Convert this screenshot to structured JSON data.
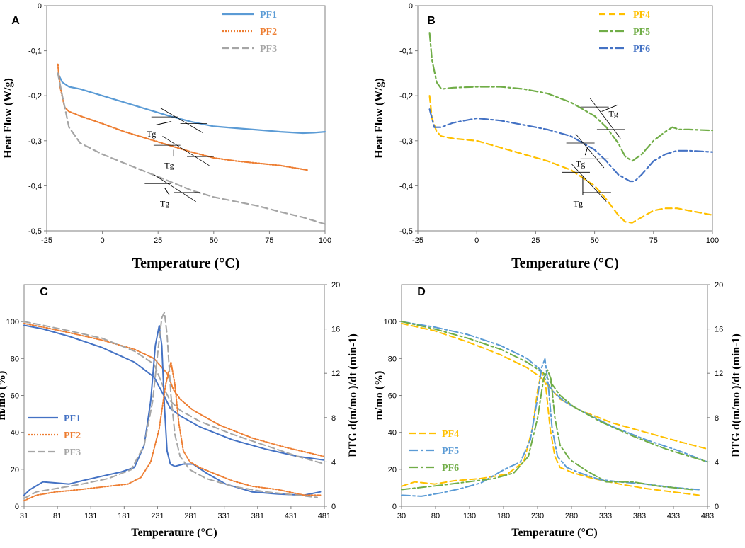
{
  "colors": {
    "blue": "#5b9bd5",
    "orange": "#ed7d31",
    "gray": "#a5a5a5",
    "yellow": "#ffc000",
    "green": "#70ad47",
    "darkblue": "#4472c4",
    "black": "#000000"
  },
  "chart_data": [
    {
      "panel": "A",
      "type": "line",
      "xlabel": "Temperature (°C)",
      "ylabel": "Heat Flow (W/g)",
      "xlim": [
        -25,
        100
      ],
      "ylim": [
        -0.5,
        0
      ],
      "xticks": [
        "-25",
        "0",
        "25",
        "50",
        "75",
        "100"
      ],
      "yticks": [
        "0",
        "-0,1",
        "-0,2",
        "-0,3",
        "-0,4",
        "-0,5"
      ],
      "annotation": "Tg",
      "series": [
        {
          "name": "PF1",
          "color": "#5b9bd5",
          "dash": "",
          "x": [
            -20,
            -18,
            -15,
            -10,
            0,
            10,
            20,
            30,
            40,
            50,
            60,
            70,
            80,
            90,
            95,
            100
          ],
          "y": [
            -0.15,
            -0.17,
            -0.18,
            -0.185,
            -0.2,
            -0.215,
            -0.23,
            -0.245,
            -0.258,
            -0.268,
            -0.272,
            -0.276,
            -0.28,
            -0.283,
            -0.282,
            -0.28
          ]
        },
        {
          "name": "PF2",
          "color": "#ed7d31",
          "dash": "2,2",
          "x": [
            -20,
            -19,
            -17,
            -15,
            -10,
            0,
            10,
            20,
            30,
            40,
            50,
            60,
            70,
            80,
            92
          ],
          "y": [
            -0.13,
            -0.18,
            -0.225,
            -0.235,
            -0.245,
            -0.262,
            -0.28,
            -0.295,
            -0.31,
            -0.325,
            -0.338,
            -0.345,
            -0.35,
            -0.355,
            -0.365
          ]
        },
        {
          "name": "PF3",
          "color": "#a5a5a5",
          "dash": "9,5",
          "x": [
            -20,
            -18,
            -15,
            -10,
            0,
            10,
            20,
            30,
            40,
            50,
            60,
            70,
            80,
            90,
            100
          ],
          "y": [
            -0.15,
            -0.2,
            -0.27,
            -0.305,
            -0.33,
            -0.35,
            -0.37,
            -0.39,
            -0.41,
            -0.425,
            -0.435,
            -0.445,
            -0.458,
            -0.47,
            -0.485
          ]
        }
      ]
    },
    {
      "panel": "B",
      "type": "line",
      "xlabel": "Temperature (°C)",
      "ylabel": "Heat Flow (W/g)",
      "xlim": [
        -25,
        100
      ],
      "ylim": [
        -0.5,
        0
      ],
      "xticks": [
        "-25",
        "0",
        "25",
        "50",
        "75",
        "100"
      ],
      "yticks": [
        "0",
        "-0,1",
        "-0,2",
        "-0,3",
        "-0,4",
        "-0,5"
      ],
      "annotation": "Tg",
      "series": [
        {
          "name": "PF4",
          "color": "#ffc000",
          "dash": "9,5",
          "x": [
            -20,
            -19,
            -17,
            -15,
            -10,
            0,
            10,
            20,
            30,
            40,
            50,
            55,
            60,
            63,
            66,
            70,
            75,
            80,
            85,
            90,
            100
          ],
          "y": [
            -0.2,
            -0.25,
            -0.28,
            -0.29,
            -0.295,
            -0.3,
            -0.315,
            -0.33,
            -0.345,
            -0.365,
            -0.4,
            -0.43,
            -0.465,
            -0.48,
            -0.482,
            -0.47,
            -0.455,
            -0.45,
            -0.45,
            -0.455,
            -0.465
          ]
        },
        {
          "name": "PF5",
          "color": "#70ad47",
          "dash": "12,4,3,4",
          "x": [
            -20,
            -19,
            -17,
            -15,
            -10,
            0,
            10,
            20,
            30,
            40,
            50,
            55,
            60,
            63,
            66,
            70,
            75,
            80,
            83,
            86,
            90,
            100
          ],
          "y": [
            -0.06,
            -0.12,
            -0.17,
            -0.185,
            -0.182,
            -0.18,
            -0.18,
            -0.185,
            -0.195,
            -0.215,
            -0.245,
            -0.27,
            -0.305,
            -0.335,
            -0.345,
            -0.33,
            -0.3,
            -0.28,
            -0.27,
            -0.275,
            -0.275,
            -0.277
          ]
        },
        {
          "name": "PF6",
          "color": "#4472c4",
          "dash": "12,4,3,4",
          "x": [
            -20,
            -18,
            -15,
            -10,
            0,
            10,
            20,
            30,
            40,
            50,
            55,
            60,
            65,
            67,
            70,
            75,
            80,
            85,
            90,
            100
          ],
          "y": [
            -0.23,
            -0.27,
            -0.27,
            -0.26,
            -0.25,
            -0.255,
            -0.265,
            -0.275,
            -0.29,
            -0.32,
            -0.345,
            -0.375,
            -0.39,
            -0.39,
            -0.375,
            -0.345,
            -0.33,
            -0.322,
            -0.322,
            -0.325
          ]
        }
      ]
    },
    {
      "panel": "C",
      "type": "line",
      "xlabel": "Temperature (°C)",
      "ylabel": "m/mo (%)",
      "y2label": "DTG d(m/mo )/dt (min-1)",
      "xlim": [
        31,
        491
      ],
      "ylim": [
        0,
        120
      ],
      "y2lim": [
        0,
        20
      ],
      "xticks": [
        "31",
        "81",
        "131",
        "181",
        "231",
        "281",
        "331",
        "381",
        "431",
        "481"
      ],
      "yticks": [
        "0",
        "20",
        "40",
        "60",
        "80",
        "100"
      ],
      "y2ticks": [
        "0",
        "4",
        "8",
        "12",
        "16",
        "20"
      ],
      "series": [
        {
          "name": "PF1",
          "kind": "mass",
          "color": "#4472c4",
          "dash": "",
          "x": [
            31,
            60,
            100,
            150,
            200,
            230,
            245,
            255,
            270,
            300,
            350,
            400,
            450,
            490
          ],
          "y": [
            98,
            96,
            92,
            86,
            78,
            70,
            60,
            53,
            49,
            43,
            36,
            31,
            27,
            25
          ]
        },
        {
          "name": "PF2",
          "kind": "mass",
          "color": "#ed7d31",
          "dash": "2,2",
          "x": [
            31,
            60,
            100,
            150,
            200,
            230,
            250,
            260,
            270,
            290,
            330,
            380,
            430,
            490
          ],
          "y": [
            99,
            97,
            94,
            90,
            85,
            80,
            72,
            63,
            58,
            52,
            44,
            37,
            32,
            27
          ]
        },
        {
          "name": "PF3",
          "kind": "mass",
          "color": "#a5a5a5",
          "dash": "9,5",
          "x": [
            31,
            60,
            100,
            150,
            200,
            230,
            245,
            255,
            270,
            300,
            350,
            400,
            450,
            490
          ],
          "y": [
            100,
            98,
            95,
            91,
            84,
            77,
            64,
            57,
            52,
            46,
            39,
            33,
            27,
            23
          ]
        },
        {
          "name": "PF1",
          "kind": "dtg",
          "color": "#4472c4",
          "dash": "",
          "x": [
            31,
            40,
            60,
            80,
            100,
            120,
            150,
            180,
            200,
            215,
            225,
            232,
            238,
            242,
            246,
            250,
            255,
            262,
            275,
            290,
            310,
            340,
            380,
            420,
            460,
            485
          ],
          "y": [
            1,
            1.5,
            2.2,
            2.1,
            2.0,
            2.3,
            2.7,
            3.1,
            3.5,
            5.5,
            9.5,
            14.5,
            16.3,
            14.5,
            9.0,
            5.0,
            3.8,
            3.6,
            3.8,
            3.8,
            3.0,
            2.0,
            1.3,
            1.1,
            1.0,
            1.3
          ]
        },
        {
          "name": "PF2",
          "kind": "dtg",
          "color": "#ed7d31",
          "dash": "2,2",
          "x": [
            31,
            50,
            80,
            100,
            130,
            160,
            190,
            210,
            225,
            238,
            248,
            256,
            262,
            268,
            275,
            285,
            300,
            320,
            350,
            380,
            420,
            460,
            485
          ],
          "y": [
            0.5,
            1.0,
            1.3,
            1.4,
            1.6,
            1.8,
            2.0,
            2.6,
            4.0,
            7.0,
            11.0,
            13.0,
            11.0,
            7.5,
            5.0,
            4.0,
            3.5,
            3.0,
            2.3,
            1.8,
            1.5,
            1.0,
            1.0
          ]
        },
        {
          "name": "PF3",
          "kind": "dtg",
          "color": "#a5a5a5",
          "dash": "9,5",
          "x": [
            31,
            50,
            80,
            120,
            160,
            195,
            215,
            228,
            236,
            242,
            246,
            250,
            256,
            262,
            270,
            285,
            310,
            350,
            400,
            450,
            480
          ],
          "y": [
            0.7,
            1.3,
            1.6,
            2.0,
            2.5,
            3.3,
            5.5,
            9.5,
            14.0,
            17.0,
            17.5,
            15.5,
            10.0,
            6.5,
            4.5,
            3.3,
            2.5,
            1.8,
            1.3,
            1.0,
            0.8
          ]
        }
      ]
    },
    {
      "panel": "D",
      "type": "line",
      "xlabel": "Temperature (°C)",
      "ylabel": "m/mo (%)",
      "y2label": "DTG d(m/mo )/dt (min-1)",
      "xlim": [
        30,
        493
      ],
      "ylim": [
        0,
        120
      ],
      "y2lim": [
        0,
        20
      ],
      "xticks": [
        "30",
        "80",
        "130",
        "180",
        "230",
        "280",
        "333",
        "383",
        "433",
        "483"
      ],
      "yticks": [
        "0",
        "20",
        "40",
        "60",
        "80",
        "100"
      ],
      "y2ticks": [
        "0",
        "4",
        "8",
        "12",
        "16",
        "20"
      ],
      "series": [
        {
          "name": "PF4",
          "kind": "mass",
          "color": "#ffc000",
          "dash": "9,5",
          "x": [
            30,
            80,
            130,
            180,
            220,
            240,
            255,
            270,
            300,
            350,
            400,
            450,
            493
          ],
          "y": [
            99,
            95,
            89,
            82,
            75,
            70,
            64,
            58,
            52,
            45,
            40,
            35,
            31
          ]
        },
        {
          "name": "PF5",
          "kind": "mass",
          "color": "#5b9bd5",
          "dash": "12,4,3,4",
          "x": [
            30,
            80,
            130,
            180,
            220,
            240,
            250,
            260,
            275,
            300,
            350,
            400,
            450,
            493
          ],
          "y": [
            100,
            97,
            93,
            87,
            80,
            74,
            67,
            62,
            57,
            52,
            43,
            36,
            30,
            24
          ]
        },
        {
          "name": "PF6",
          "kind": "mass",
          "color": "#70ad47",
          "dash": "12,4,3,4",
          "x": [
            30,
            80,
            130,
            180,
            220,
            245,
            258,
            270,
            290,
            330,
            380,
            430,
            493
          ],
          "y": [
            100,
            96,
            91,
            85,
            78,
            72,
            66,
            60,
            54,
            46,
            38,
            31,
            24
          ]
        },
        {
          "name": "PF4",
          "kind": "dtg",
          "color": "#ffc000",
          "dash": "9,5",
          "x": [
            30,
            50,
            80,
            110,
            150,
            190,
            215,
            228,
            236,
            242,
            248,
            255,
            262,
            270,
            290,
            320,
            360,
            400,
            440,
            480
          ],
          "y": [
            1.8,
            2.2,
            2.0,
            2.3,
            2.5,
            2.9,
            4.0,
            7.0,
            10.5,
            12.2,
            11.0,
            7.0,
            4.5,
            3.5,
            3.0,
            2.5,
            2.0,
            1.6,
            1.3,
            1.0
          ]
        },
        {
          "name": "PF5",
          "kind": "dtg",
          "color": "#5b9bd5",
          "dash": "12,4,3,4",
          "x": [
            30,
            60,
            90,
            120,
            150,
            185,
            210,
            225,
            235,
            242,
            247,
            252,
            258,
            266,
            280,
            300,
            330,
            360,
            400,
            440,
            480
          ],
          "y": [
            1.0,
            0.9,
            1.2,
            1.6,
            2.1,
            3.3,
            4.0,
            6.0,
            9.5,
            12.5,
            13.3,
            11.0,
            7.0,
            4.5,
            3.5,
            3.0,
            2.4,
            2.2,
            2.0,
            1.7,
            1.5
          ]
        },
        {
          "name": "PF6",
          "kind": "dtg",
          "color": "#70ad47",
          "dash": "12,4,3,4",
          "x": [
            30,
            60,
            90,
            130,
            170,
            200,
            222,
            236,
            245,
            251,
            256,
            262,
            270,
            285,
            310,
            340,
            380,
            420,
            470
          ],
          "y": [
            1.5,
            1.7,
            1.9,
            2.2,
            2.5,
            3.0,
            4.5,
            8.0,
            11.5,
            12.3,
            11.5,
            8.0,
            5.5,
            4.2,
            3.2,
            2.2,
            2.2,
            1.8,
            1.5
          ]
        }
      ]
    }
  ]
}
